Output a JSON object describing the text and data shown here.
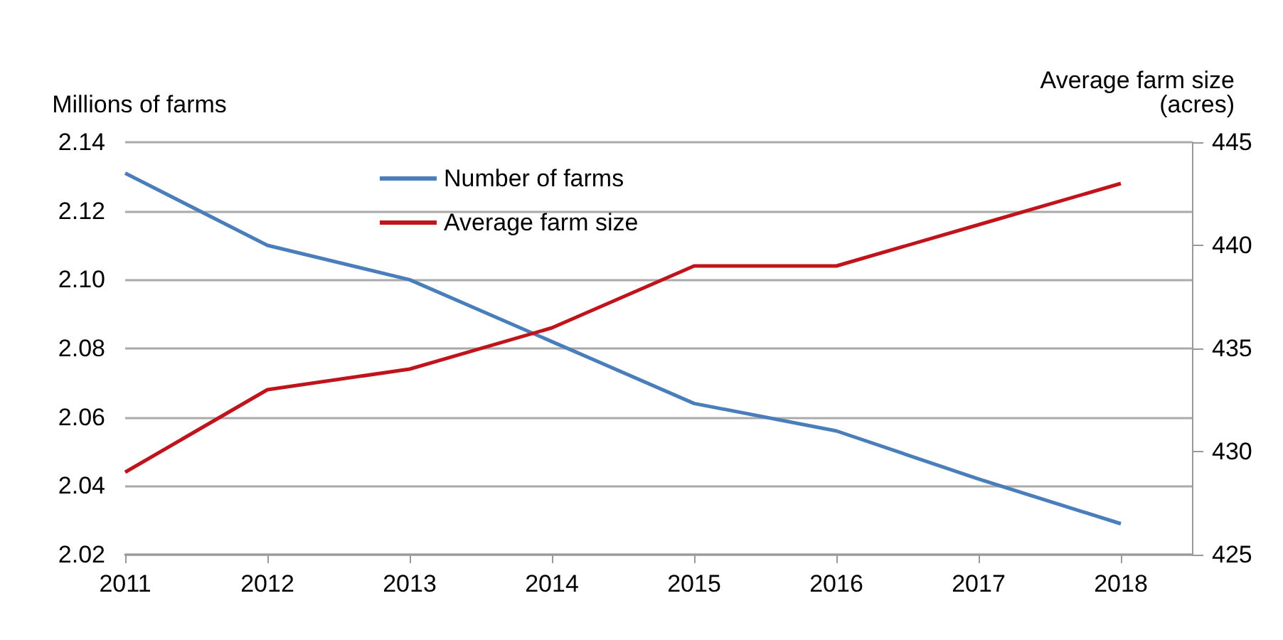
{
  "chart_data": {
    "type": "line",
    "ylabel": "Millions of farms",
    "y2label": "Average farm size\n(acres)",
    "x": [
      2011,
      2012,
      2013,
      2014,
      2015,
      2016,
      2017,
      2018
    ],
    "xlim": [
      2011,
      2018.5
    ],
    "xticks": [
      2011,
      2012,
      2013,
      2014,
      2015,
      2016,
      2017,
      2018
    ],
    "ylim": [
      2.02,
      2.14
    ],
    "yticks": [
      2.02,
      2.04,
      2.06,
      2.08,
      {
        "value": 2.1,
        "label": "2.10"
      },
      2.12,
      2.14
    ],
    "y2lim": [
      425,
      445
    ],
    "y2ticks": [
      425,
      430,
      435,
      440,
      445
    ],
    "series": [
      {
        "name": "Number of farms",
        "color": "#4a7ebb",
        "values": [
          2.131,
          2.11,
          2.1,
          2.082,
          2.064,
          2.056,
          2.042,
          2.029
        ]
      },
      {
        "name": "Average farm size",
        "color": "#c0141c",
        "axis": "y2",
        "values": [
          429,
          433,
          434,
          436,
          439,
          439,
          441,
          443
        ]
      }
    ],
    "grid": "y",
    "legend": "top",
    "marker": "none",
    "line_style": "solid"
  }
}
